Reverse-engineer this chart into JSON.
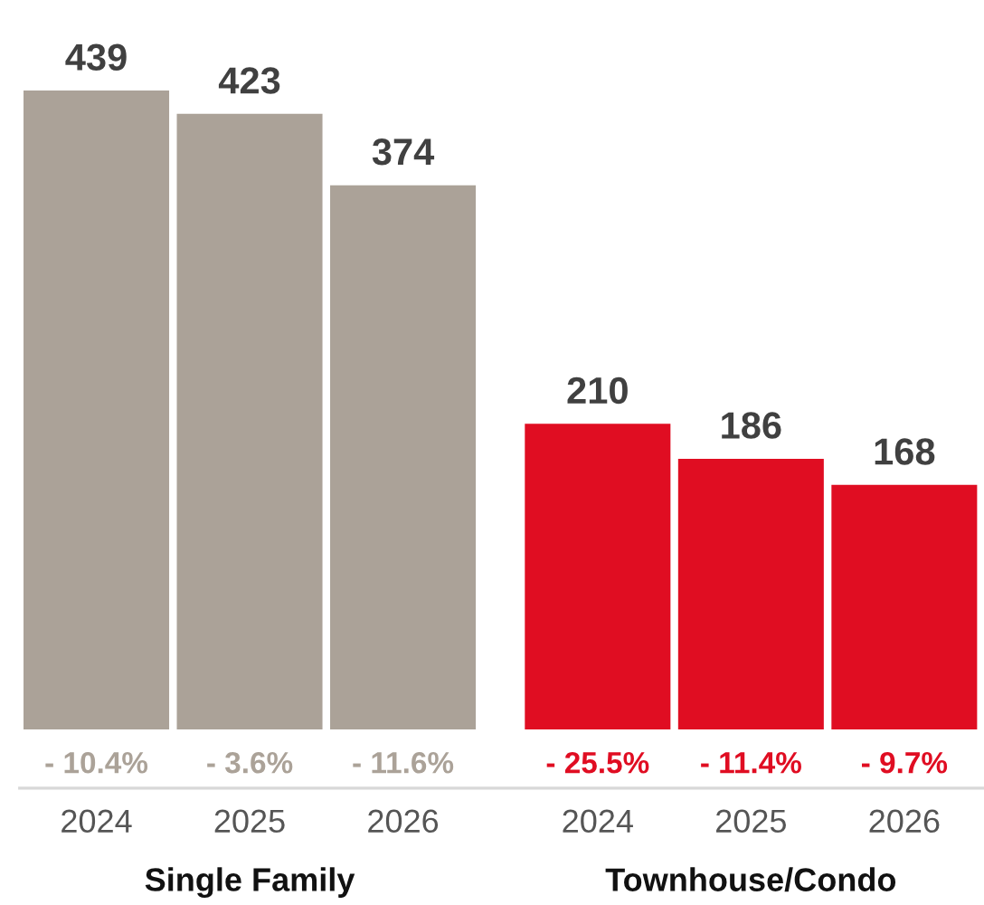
{
  "chart_data": {
    "type": "bar",
    "categories": [
      "2024",
      "2025",
      "2026",
      "2024",
      "2025",
      "2026"
    ],
    "values": [
      439,
      423,
      374,
      210,
      186,
      168
    ],
    "colors": [
      "#aba298",
      "#aba298",
      "#aba298",
      "#e00d22",
      "#e00d22",
      "#e00d22"
    ],
    "data_labels": true,
    "annotations": [
      "- 10.4%",
      "- 3.6%",
      "- 11.6%",
      "- 25.5%",
      "- 11.4%",
      "- 9.7%",
      "Single Family",
      "Townhouse/Condo"
    ]
  }
}
